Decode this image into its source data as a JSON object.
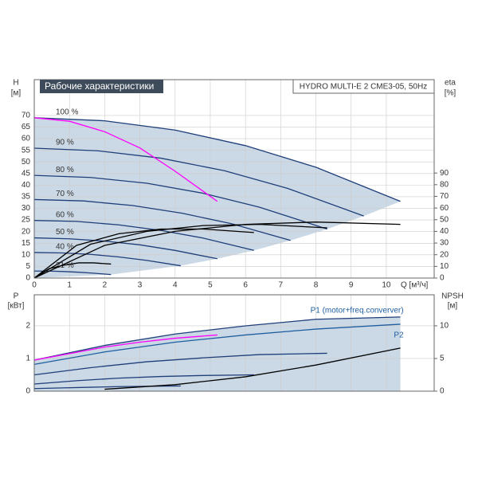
{
  "chart_data": [
    {
      "type": "line",
      "title": "Рабочие характеристики",
      "subtitle": "HYDRO MULTI-E 2 CME3-05, 50Hz",
      "ylabel": "H",
      "yunit": "[м]",
      "y2label": "eta",
      "y2unit": "[%]",
      "xlabel": "Q [м³/ч]",
      "xlim": [
        0,
        11.36
      ],
      "ylim": [
        0,
        85.4
      ],
      "y2lim": [
        0,
        170
      ],
      "grid": true,
      "xticks": [
        0,
        1,
        2,
        3,
        4,
        5,
        6,
        7,
        8,
        9,
        10
      ],
      "yticks": [
        0,
        5,
        10,
        15,
        20,
        25,
        30,
        35,
        40,
        45,
        50,
        55,
        60,
        65,
        70
      ],
      "y2ticks": [
        0,
        10,
        20,
        30,
        40,
        50,
        60,
        70,
        80,
        90
      ],
      "series": [
        {
          "name": "100 %",
          "color": "#1f3f7a",
          "x": [
            0,
            2,
            4,
            6,
            8,
            10.4
          ],
          "values": [
            69,
            67.7,
            63.7,
            57,
            47.7,
            33
          ]
        },
        {
          "name": "90 %",
          "color": "#1f3f7a",
          "x": [
            0,
            1.8,
            3.6,
            5.4,
            7.2,
            9.36
          ],
          "values": [
            55.9,
            54.8,
            51.6,
            46.2,
            38.6,
            26.7
          ]
        },
        {
          "name": "80 %",
          "color": "#1f3f7a",
          "x": [
            0,
            1.6,
            3.2,
            4.8,
            6.4,
            8.32
          ],
          "values": [
            44.2,
            43.3,
            40.8,
            36.5,
            30.5,
            21.1
          ]
        },
        {
          "name": "70 %",
          "color": "#1f3f7a",
          "x": [
            0,
            1.4,
            2.8,
            4.2,
            5.6,
            7.28
          ],
          "values": [
            33.8,
            33.2,
            31.2,
            27.9,
            23.4,
            16.2
          ]
        },
        {
          "name": "60 %",
          "color": "#1f3f7a",
          "x": [
            0,
            1.2,
            2.4,
            3.6,
            4.8,
            6.24
          ],
          "values": [
            24.8,
            24.4,
            22.9,
            20.5,
            17.2,
            11.9
          ]
        },
        {
          "name": "50 %",
          "color": "#1f3f7a",
          "x": [
            0,
            1,
            2,
            3,
            4,
            5.2
          ],
          "values": [
            17.3,
            16.9,
            15.9,
            14.3,
            11.9,
            8.3
          ]
        },
        {
          "name": "40 %",
          "color": "#1f3f7a",
          "x": [
            0,
            0.8,
            1.6,
            2.4,
            3.2,
            4.16
          ],
          "values": [
            11,
            10.8,
            10.2,
            9.1,
            7.6,
            5.3
          ]
        },
        {
          "name": "21 %",
          "color": "#1f3f7a",
          "x": [
            0,
            0.42,
            0.84,
            1.26,
            1.68,
            2.18
          ],
          "values": [
            3,
            3,
            2.8,
            2.5,
            2.1,
            1.5
          ]
        },
        {
          "color": "#ff00ff",
          "x": [
            0,
            1,
            2,
            3,
            4,
            5.2
          ],
          "values": [
            69,
            67.5,
            63,
            56,
            46,
            33
          ]
        },
        {
          "color": "#000000",
          "axis": "y2",
          "x": [
            0,
            2,
            4,
            6,
            8,
            10.4
          ],
          "values": [
            0,
            28,
            40,
            46,
            48,
            46
          ]
        },
        {
          "color": "#000000",
          "axis": "y2",
          "x": [
            0,
            1.6,
            3.2,
            4.8,
            6.4,
            8.32
          ],
          "values": [
            0,
            29,
            40,
            45,
            46,
            43
          ]
        },
        {
          "color": "#000000",
          "axis": "y2",
          "x": [
            0,
            1.2,
            2.4,
            3.6,
            4.8,
            6.24
          ],
          "values": [
            0,
            28,
            38,
            42,
            42,
            39
          ]
        },
        {
          "color": "#000000",
          "axis": "y2",
          "x": [
            0,
            0.42,
            0.84,
            1.26,
            1.68,
            2.18
          ],
          "values": [
            0,
            8,
            11,
            13,
            13,
            12
          ]
        }
      ]
    },
    {
      "type": "line",
      "ylabel": "P",
      "yunit": "[кВт]",
      "y2label": "NPSH",
      "y2unit": "[м]",
      "xlim": [
        0,
        11.36
      ],
      "ylim": [
        0,
        2.95
      ],
      "y2lim": [
        0,
        14.75
      ],
      "grid": true,
      "yticks": [
        0,
        1,
        2
      ],
      "y2ticks": [
        0,
        5,
        10
      ],
      "series": [
        {
          "name": "P1 (motor+freq.converver)",
          "color": "#1f3f7a",
          "x": [
            0,
            2,
            4,
            6,
            8,
            10.4
          ],
          "values": [
            0.95,
            1.4,
            1.75,
            2.0,
            2.2,
            2.27
          ]
        },
        {
          "name": "P2",
          "color": "#1f5fa0",
          "x": [
            0,
            2,
            4,
            6,
            8,
            10.4
          ],
          "values": [
            0.82,
            1.2,
            1.5,
            1.72,
            1.9,
            2.05
          ]
        },
        {
          "color": "#1f3f7a",
          "x": [
            0,
            1.6,
            3.2,
            4.8,
            6.4,
            8.32
          ],
          "values": [
            0.5,
            0.72,
            0.9,
            1.02,
            1.12,
            1.16
          ]
        },
        {
          "color": "#1f3f7a",
          "x": [
            0,
            1.2,
            2.4,
            3.6,
            4.8,
            6.24
          ],
          "values": [
            0.22,
            0.32,
            0.4,
            0.45,
            0.48,
            0.5
          ]
        },
        {
          "color": "#1f3f7a",
          "x": [
            0,
            0.8,
            1.6,
            2.4,
            3.2,
            4.16
          ],
          "values": [
            0.08,
            0.1,
            0.12,
            0.14,
            0.15,
            0.16
          ]
        },
        {
          "color": "#ff00ff",
          "x": [
            0,
            1,
            2,
            3,
            4,
            5.2
          ],
          "values": [
            0.95,
            1.15,
            1.35,
            1.5,
            1.62,
            1.72
          ]
        },
        {
          "color": "#000000",
          "axis": "y2",
          "x": [
            2,
            4,
            6,
            8,
            10.4
          ],
          "values": [
            0.3,
            1,
            2.2,
            4,
            6.6
          ]
        }
      ]
    }
  ]
}
